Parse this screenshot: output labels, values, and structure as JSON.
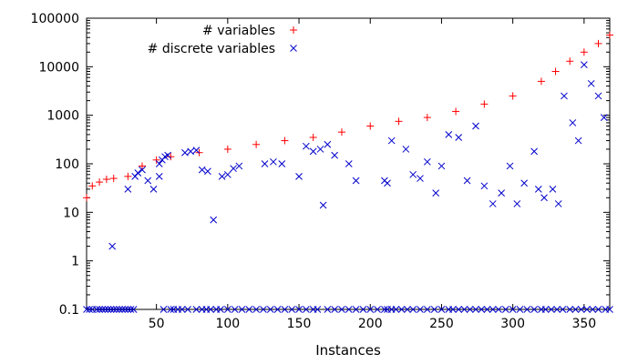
{
  "chart_data": {
    "type": "scatter",
    "title": "",
    "xlabel": "Instances",
    "ylabel": "",
    "xlim": [
      1,
      368
    ],
    "ylim": [
      0.1,
      100000
    ],
    "yscale": "log",
    "grid": false,
    "legend_position": "top-center",
    "x_ticks": [
      50,
      100,
      150,
      200,
      250,
      300,
      350
    ],
    "y_ticks": [
      0.1,
      1,
      10,
      100,
      1000,
      10000,
      100000
    ],
    "y_tick_labels": [
      "0.1",
      "1",
      "10",
      "100",
      "1000",
      "10000",
      "100000"
    ],
    "series": [
      {
        "name": "# variables",
        "marker": "plus",
        "color": "#ff0000",
        "x": [
          1,
          5,
          10,
          15,
          20,
          30,
          40,
          50,
          60,
          80,
          100,
          120,
          140,
          160,
          180,
          200,
          220,
          240,
          260,
          280,
          300,
          320,
          330,
          340,
          350,
          360,
          368
        ],
        "y": [
          20,
          35,
          42,
          48,
          50,
          55,
          90,
          120,
          140,
          170,
          200,
          250,
          300,
          350,
          450,
          600,
          750,
          900,
          1200,
          1700,
          2500,
          5000,
          8000,
          13000,
          20000,
          30000,
          45000
        ]
      },
      {
        "name": "# discrete variables",
        "marker": "cross",
        "color": "#0000cc",
        "x": [
          1,
          3,
          5,
          8,
          10,
          12,
          14,
          16,
          18,
          20,
          22,
          24,
          26,
          28,
          30,
          32,
          34,
          19,
          30,
          35,
          37,
          40,
          44,
          48,
          52,
          55,
          60,
          62,
          65,
          68,
          72,
          78,
          82,
          85,
          88,
          90,
          92,
          95,
          100,
          105,
          110,
          115,
          120,
          125,
          130,
          135,
          140,
          145,
          150,
          155,
          160,
          163,
          167,
          170,
          175,
          180,
          185,
          190,
          195,
          200,
          205,
          210,
          212,
          215,
          218,
          222,
          226,
          230,
          235,
          240,
          245,
          250,
          255,
          258,
          262,
          266,
          270,
          274,
          278,
          282,
          286,
          290,
          295,
          300,
          305,
          310,
          315,
          320,
          323,
          327,
          331,
          335,
          340,
          344,
          348,
          352,
          356,
          360,
          365,
          368,
          52,
          54,
          56,
          58,
          70,
          74,
          78,
          82,
          86,
          96,
          100,
          104,
          108,
          126,
          132,
          138,
          150,
          155,
          160,
          165,
          170,
          175,
          185,
          190,
          210,
          212,
          215,
          225,
          230,
          235,
          240,
          246,
          250,
          255,
          262,
          268,
          274,
          280,
          286,
          292,
          298,
          303,
          308,
          315,
          318,
          322,
          328,
          332,
          336,
          342,
          346,
          350,
          355,
          360,
          364
        ],
        "y": [
          0.1,
          0.1,
          0.1,
          0.1,
          0.1,
          0.1,
          0.1,
          0.1,
          0.1,
          0.1,
          0.1,
          0.1,
          0.1,
          0.1,
          0.1,
          0.1,
          0.1,
          2,
          30,
          55,
          65,
          75,
          45,
          30,
          55,
          0.1,
          0.1,
          0.1,
          0.1,
          0.1,
          0.1,
          0.1,
          0.1,
          0.1,
          0.1,
          7,
          0.1,
          0.1,
          0.1,
          0.1,
          0.1,
          0.1,
          0.1,
          0.1,
          0.1,
          0.1,
          0.1,
          0.1,
          0.1,
          0.1,
          0.1,
          0.1,
          14,
          0.1,
          0.1,
          0.1,
          0.1,
          0.1,
          0.1,
          0.1,
          0.1,
          0.1,
          0.1,
          0.1,
          0.1,
          0.1,
          0.1,
          0.1,
          0.1,
          0.1,
          0.1,
          0.1,
          0.1,
          0.1,
          0.1,
          0.1,
          0.1,
          0.1,
          0.1,
          0.1,
          0.1,
          0.1,
          0.1,
          0.1,
          0.1,
          0.1,
          0.1,
          0.1,
          0.1,
          0.1,
          0.1,
          0.1,
          0.1,
          0.1,
          0.1,
          0.1,
          0.1,
          0.1,
          0.1,
          0.1,
          100,
          120,
          140,
          150,
          170,
          180,
          190,
          75,
          70,
          55,
          60,
          80,
          90,
          100,
          110,
          100,
          55,
          230,
          180,
          200,
          250,
          150,
          100,
          45,
          45,
          40,
          300,
          200,
          60,
          50,
          110,
          25,
          90,
          400,
          350,
          45,
          600,
          35,
          15,
          25,
          90,
          15,
          40,
          180,
          30,
          20,
          30,
          15,
          2500,
          700,
          300,
          11000,
          4500,
          2500,
          900
        ]
      }
    ]
  }
}
